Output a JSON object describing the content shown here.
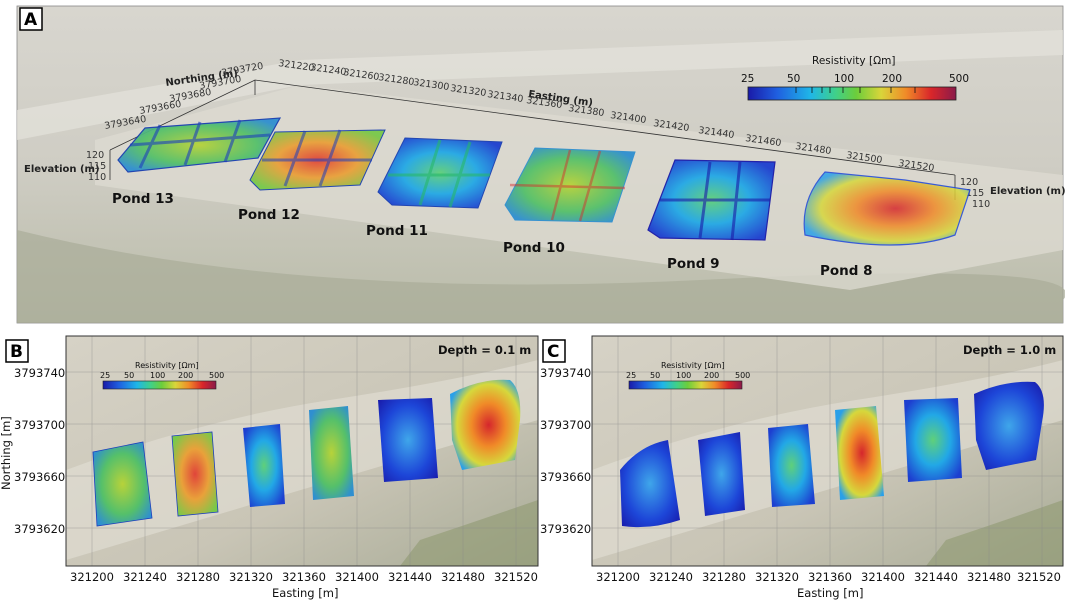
{
  "panelA": {
    "letter": "A",
    "northing_title": "Northing (m)",
    "northing_ticks": [
      "3793720",
      "3793700",
      "3793680",
      "3793660",
      "3793640"
    ],
    "easting_title": "Easting (m)",
    "easting_ticks": [
      "321220",
      "321240",
      "321260",
      "321280",
      "321300",
      "321320",
      "321340",
      "321360",
      "321380",
      "321400",
      "321420",
      "321440",
      "321460",
      "321480",
      "321500",
      "321520"
    ],
    "elevation_title": "Elevation (m)",
    "elevation_ticks": [
      "120",
      "115",
      "110"
    ],
    "colorbar_title": "Resistivity [Ωm]",
    "colorbar_ticks": [
      "25",
      "50",
      "100",
      "200",
      "500"
    ],
    "ponds": [
      "Pond 13",
      "Pond 12",
      "Pond 11",
      "Pond 10",
      "Pond 9",
      "Pond 8"
    ]
  },
  "panelB": {
    "letter": "B",
    "depth_label": "Depth = 0.1 m",
    "ylabel": "Northing [m]",
    "xlabel": "Easting [m]",
    "yticks": [
      "3793740",
      "3793700",
      "3793660",
      "3793620"
    ],
    "xticks": [
      "321200",
      "321240",
      "321280",
      "321320",
      "321360",
      "321400",
      "321440",
      "321480",
      "321520"
    ],
    "colorbar_title": "Resistivity [Ωm]",
    "colorbar_ticks": [
      "25",
      "50",
      "100",
      "200",
      "500"
    ]
  },
  "panelC": {
    "letter": "C",
    "depth_label": "Depth = 1.0 m",
    "xlabel": "Easting [m]",
    "yticks": [
      "3793740",
      "3793700",
      "3793660",
      "3793620"
    ],
    "xticks": [
      "321200",
      "321240",
      "321280",
      "321320",
      "321360",
      "321400",
      "321440",
      "321480",
      "321520"
    ],
    "colorbar_title": "Resistivity [Ωm]",
    "colorbar_ticks": [
      "25",
      "50",
      "100",
      "200",
      "500"
    ]
  },
  "colors": {
    "cmap": [
      "#1a1aa8",
      "#1f5fe0",
      "#1fb6e8",
      "#3fd08a",
      "#6ccd3b",
      "#d9d53a",
      "#f08a28",
      "#d9262a",
      "#8a1a4a"
    ]
  }
}
